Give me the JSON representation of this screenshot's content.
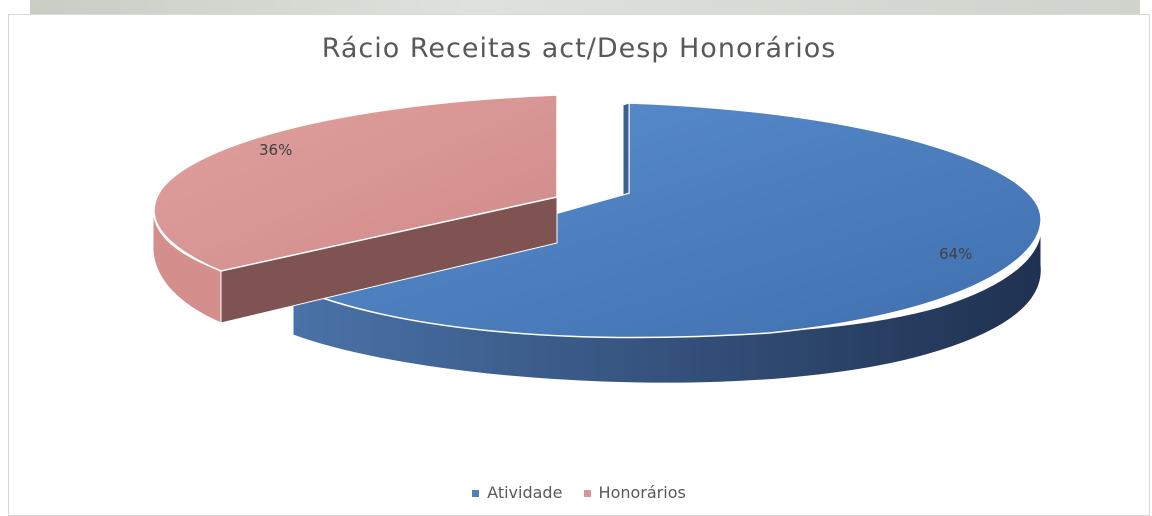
{
  "chart_data": {
    "type": "pie",
    "title": "Rácio Receitas act/Desp Honorários",
    "slices": [
      {
        "label": "Atividade",
        "value": 64,
        "display": "64%",
        "color": "#4f81bd",
        "side_color": "#2f4f7a"
      },
      {
        "label": "Honorários",
        "value": 36,
        "display": "36%",
        "color": "#d99694",
        "side_color": "#7a4b49"
      }
    ],
    "legend_position": "bottom",
    "style": "3d-exploded"
  }
}
